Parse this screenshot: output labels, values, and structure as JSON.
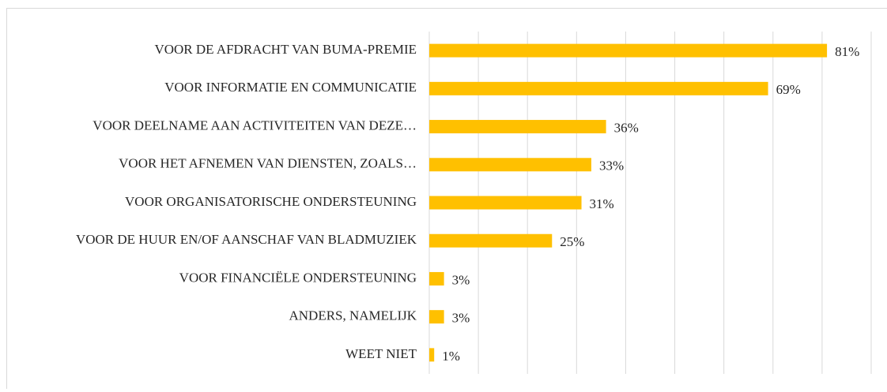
{
  "chart_data": {
    "type": "bar",
    "orientation": "horizontal",
    "categories": [
      "VOOR DE AFDRACHT VAN BUMA-PREMIE",
      "VOOR INFORMATIE EN COMMUNICATIE",
      "VOOR DEELNAME AAN ACTIVITEITEN VAN DEZE…",
      "VOOR HET AFNEMEN VAN DIENSTEN, ZOALS…",
      "VOOR ORGANISATORISCHE ONDERSTEUNING",
      "VOOR DE HUUR EN/OF AANSCHAF VAN BLADMUZIEK",
      "VOOR FINANCIËLE ONDERSTEUNING",
      "ANDERS, NAMELIJK",
      "WEET NIET"
    ],
    "values": [
      81,
      69,
      36,
      33,
      31,
      25,
      3,
      3,
      1
    ],
    "value_labels": [
      "81%",
      "69%",
      "36%",
      "33%",
      "31%",
      "25%",
      "3%",
      "3%",
      "1%"
    ],
    "color": "#ffc000",
    "xlim": [
      0,
      90
    ],
    "xticks": [
      0,
      10,
      20,
      30,
      40,
      50,
      60,
      70,
      80,
      90
    ],
    "grid": true
  }
}
